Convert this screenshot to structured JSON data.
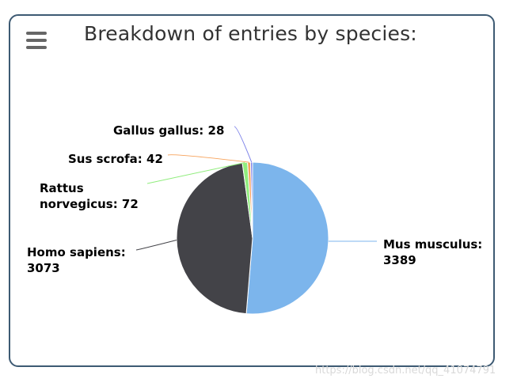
{
  "title": "Breakdown of entries by species:",
  "menu_icon": "hamburger-icon",
  "watermark": "https://blog.csdn.net/qq_41074791",
  "chart_data": {
    "type": "pie",
    "title": "Breakdown of entries by species:",
    "series": [
      {
        "slices": [
          {
            "name": "Mus musculus",
            "value": 3389,
            "color": "#7cb5ec"
          },
          {
            "name": "Homo sapiens",
            "value": 3073,
            "color": "#434348"
          },
          {
            "name": "Rattus norvegicus",
            "value": 72,
            "color": "#90ed7d"
          },
          {
            "name": "Sus scrofa",
            "value": 42,
            "color": "#f7a35c"
          },
          {
            "name": "Gallus gallus",
            "value": 28,
            "color": "#8085e9"
          }
        ]
      }
    ],
    "labels": [
      {
        "lines": [
          "Mus musculus:",
          "3389"
        ]
      },
      {
        "lines": [
          "Homo sapiens:",
          "3073"
        ]
      },
      {
        "lines": [
          "Rattus",
          "norvegicus: 72"
        ]
      },
      {
        "lines": [
          "Sus scrofa: 42"
        ]
      },
      {
        "lines": [
          "Gallus gallus: 28"
        ]
      }
    ]
  }
}
